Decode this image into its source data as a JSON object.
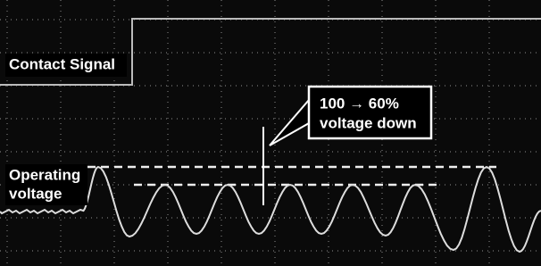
{
  "labels": {
    "contact_signal": "Contact Signal",
    "operating_voltage": [
      "Operating",
      "voltage"
    ]
  },
  "callout": [
    "100 → 60%",
    "voltage down"
  ]
}
